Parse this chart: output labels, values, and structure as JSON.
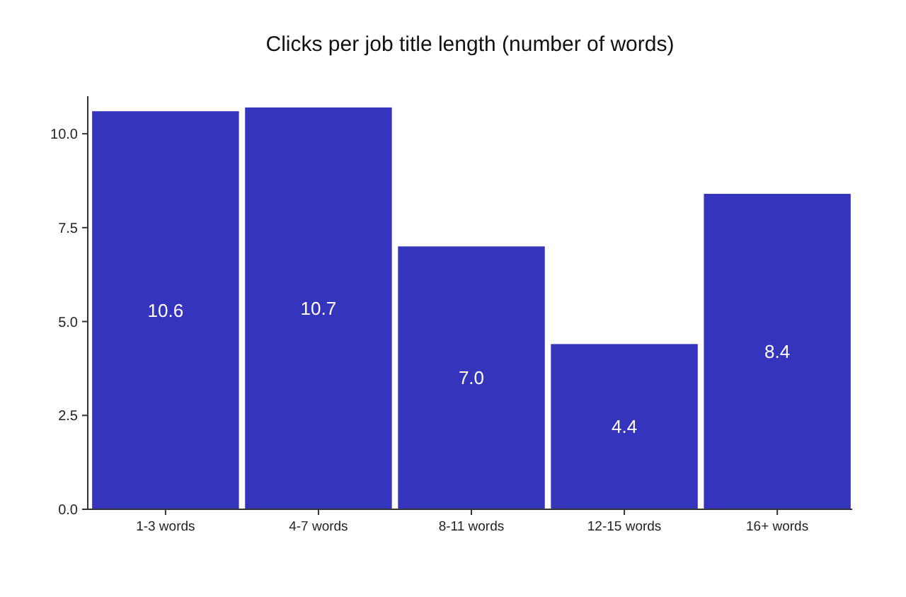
{
  "chart_data": {
    "type": "bar",
    "title": "Clicks per job title length (number of words)",
    "categories": [
      "1-3 words",
      "4-7 words",
      "8-11 words",
      "12-15 words",
      "16+ words"
    ],
    "values": [
      10.6,
      10.7,
      7.0,
      4.4,
      8.4
    ],
    "value_labels": [
      "10.6",
      "10.7",
      "7.0",
      "4.4",
      "8.4"
    ],
    "color": "#3434bc",
    "ylim": [
      0,
      11
    ],
    "yticks": [
      {
        "value": 0,
        "label": "0.0"
      },
      {
        "value": 2.5,
        "label": "2.5"
      },
      {
        "value": 5,
        "label": "5.0"
      },
      {
        "value": 7.5,
        "label": "7.5"
      },
      {
        "value": 10,
        "label": "10.0"
      }
    ],
    "grid": false
  }
}
